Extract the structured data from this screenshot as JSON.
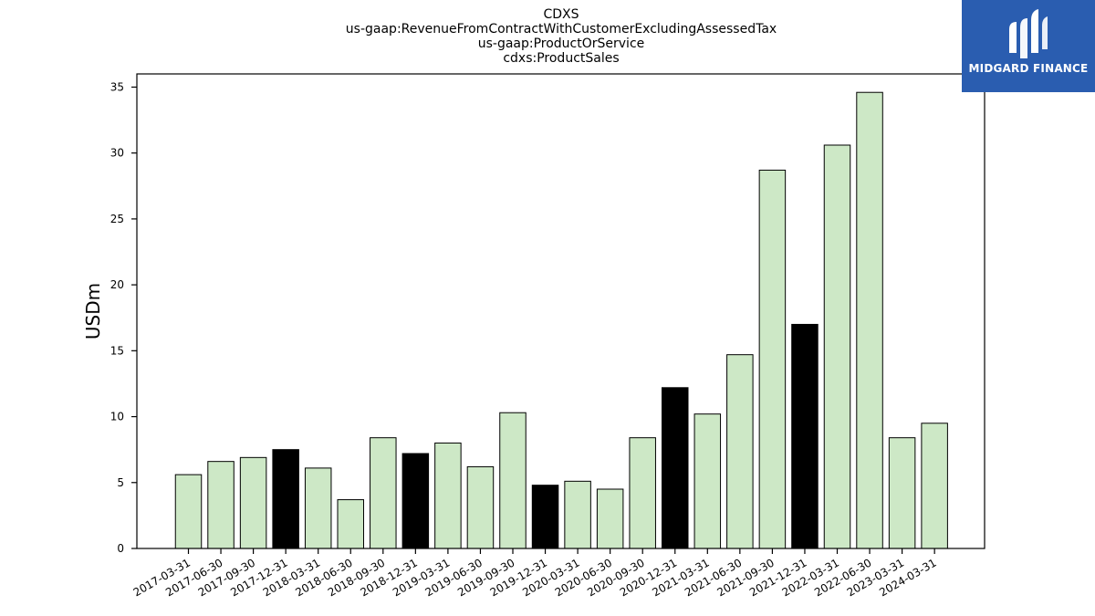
{
  "chart_data": {
    "type": "bar",
    "title_lines": [
      "CDXS",
      "us-gaap:RevenueFromContractWithCustomerExcludingAssessedTax",
      "us-gaap:ProductOrService",
      "cdxs:ProductSales"
    ],
    "xlabel": "",
    "ylabel": "USDm",
    "ylim": [
      0,
      36
    ],
    "yticks": [
      0,
      5,
      10,
      15,
      20,
      25,
      30,
      35
    ],
    "grid": false,
    "categories": [
      "2017-03-31",
      "2017-06-30",
      "2017-09-30",
      "2017-12-31",
      "2018-03-31",
      "2018-06-30",
      "2018-09-30",
      "2018-12-31",
      "2019-03-31",
      "2019-06-30",
      "2019-09-30",
      "2019-12-31",
      "2020-03-31",
      "2020-06-30",
      "2020-09-30",
      "2020-12-31",
      "2021-03-31",
      "2021-06-30",
      "2021-09-30",
      "2021-12-31",
      "2022-03-31",
      "2022-06-30",
      "2023-03-31",
      "2024-03-31"
    ],
    "values": [
      5.6,
      6.6,
      6.9,
      7.5,
      6.1,
      3.7,
      8.4,
      7.2,
      8.0,
      6.2,
      10.3,
      4.8,
      5.1,
      4.5,
      8.4,
      12.2,
      10.2,
      14.7,
      28.7,
      17.0,
      30.6,
      34.6,
      8.4,
      9.5
    ],
    "highlight": [
      false,
      false,
      false,
      true,
      false,
      false,
      false,
      true,
      false,
      false,
      false,
      true,
      false,
      false,
      false,
      true,
      false,
      false,
      false,
      true,
      false,
      false,
      false,
      false
    ],
    "colors": {
      "bar": "#cde8c6",
      "highlight": "#000000",
      "edge": "#000000"
    }
  },
  "logo": {
    "text": "MIDGARD FINANCE",
    "background": "#2a5db0"
  }
}
